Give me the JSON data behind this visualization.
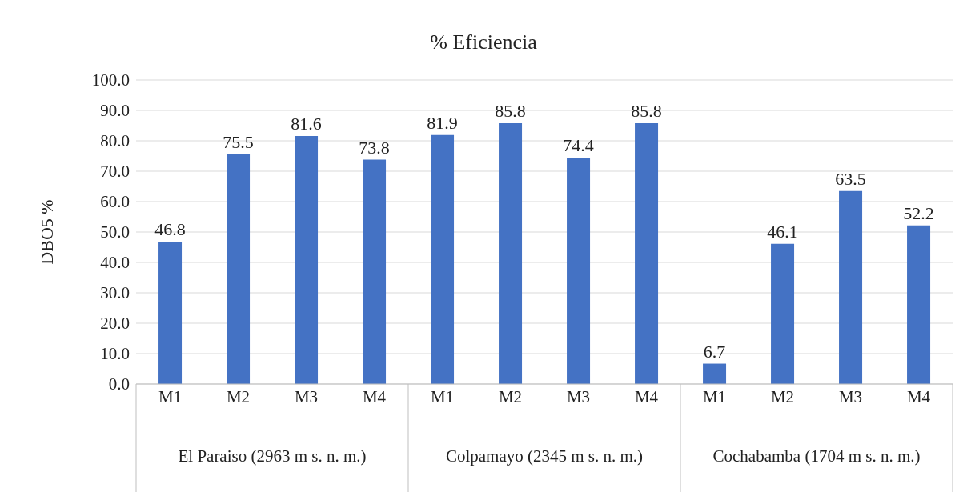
{
  "chart_data": {
    "type": "bar",
    "title": "% Eficiencia",
    "ylabel": "DBO5 %",
    "categories": [
      "M1",
      "M2",
      "M3",
      "M4",
      "M1",
      "M2",
      "M3",
      "M4",
      "M1",
      "M2",
      "M3",
      "M4"
    ],
    "values": [
      46.8,
      75.5,
      81.6,
      73.8,
      81.9,
      85.8,
      74.4,
      85.8,
      6.7,
      46.1,
      63.5,
      52.2
    ],
    "color": "#4472c4",
    "data_labels": true,
    "grid": "y",
    "ylim": [
      0,
      100
    ],
    "yticks": [
      {
        "value": 0,
        "label": "0.0"
      },
      {
        "value": 10,
        "label": "10.0"
      },
      {
        "value": 20,
        "label": "20.0"
      },
      {
        "value": 30,
        "label": "30.0"
      },
      {
        "value": 40,
        "label": "40.0"
      },
      {
        "value": 50,
        "label": "50.0"
      },
      {
        "value": 60,
        "label": "60.0"
      },
      {
        "value": 70,
        "label": "70.0"
      },
      {
        "value": 80,
        "label": "80.0"
      },
      {
        "value": 90,
        "label": "90.0"
      },
      {
        "value": 100,
        "label": "100.0"
      }
    ],
    "annotations": [
      "El Paraiso (2963 m s. n. m.)",
      "Colpamayo (2345 m s. n. m.)",
      "Cochabamba (1704 m s. n. m.)"
    ]
  }
}
